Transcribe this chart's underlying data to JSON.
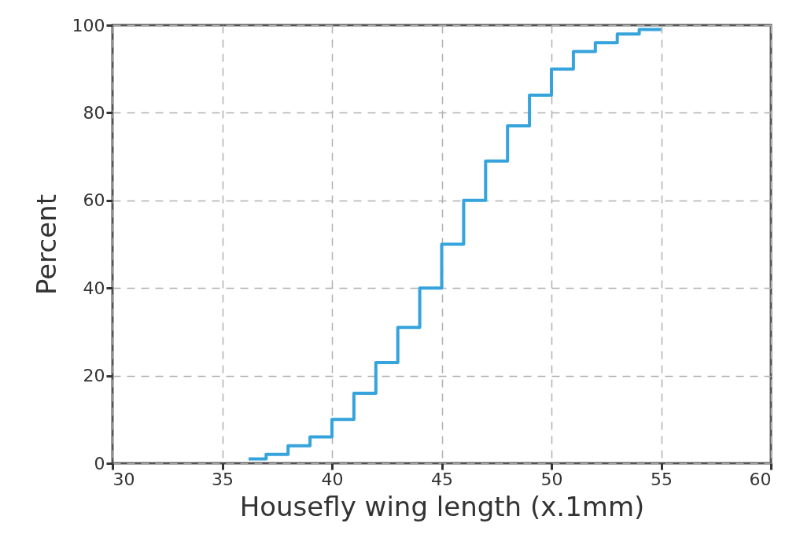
{
  "chart_data": {
    "type": "step",
    "xlabel": "Housefly wing length (x.1mm)",
    "ylabel": "Percent",
    "x": [
      36.2,
      37,
      38,
      39,
      40,
      41,
      42,
      43,
      44,
      45,
      46,
      47,
      48,
      49,
      50,
      51,
      52,
      53,
      54,
      55
    ],
    "series": [
      {
        "color": "#35a3dc",
        "values": [
          1,
          2,
          4,
          6,
          10,
          16,
          23,
          31,
          40,
          50,
          60,
          69,
          77,
          84,
          90,
          94,
          96,
          98,
          99,
          99
        ]
      }
    ],
    "xlim": [
      30,
      60
    ],
    "xticks": [
      30,
      35,
      40,
      45,
      50,
      55,
      60
    ],
    "ylim": [
      0,
      100
    ],
    "yticks": [
      0,
      20,
      40,
      60,
      80,
      100
    ],
    "grid": true,
    "line_style": "solid",
    "marker": "none"
  }
}
